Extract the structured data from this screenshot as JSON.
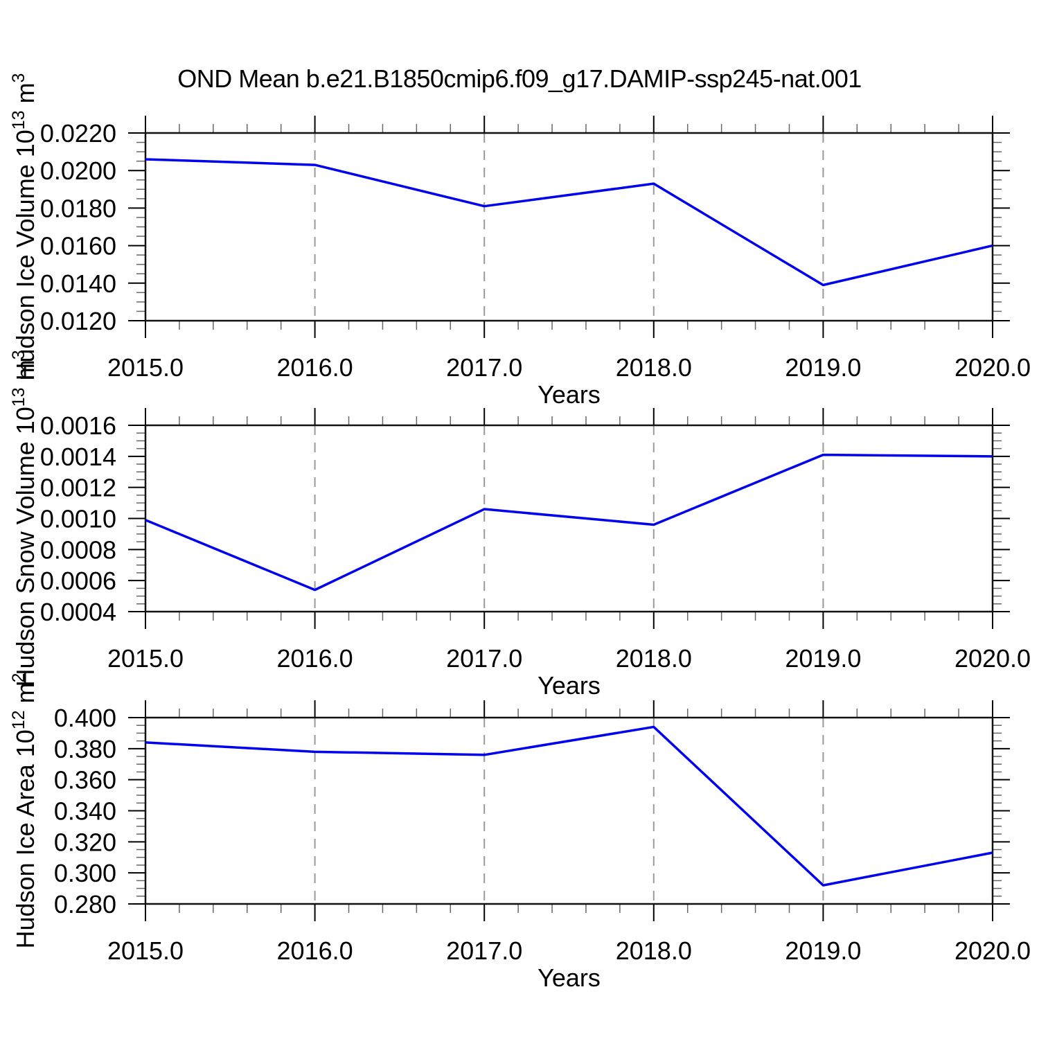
{
  "title": "OND Mean b.e21.B1850cmip6.f09_g17.DAMIP-ssp245-nat.001",
  "colors": {
    "line": "#0000ee",
    "frame": "#111111",
    "major_tick": "#000000",
    "minor_tick": "#666666",
    "grid": "#999999",
    "text": "#000000"
  },
  "chart_data": [
    {
      "type": "line",
      "name": "hudson-ice-volume",
      "ylabel_rich": [
        {
          "t": "Hudson Ice Volume 10"
        },
        {
          "sup": "13"
        },
        {
          "t": " m"
        },
        {
          "sup": "3"
        }
      ],
      "xlabel": "Years",
      "x": [
        2015.0,
        2016.0,
        2017.0,
        2018.0,
        2019.0,
        2020.0
      ],
      "y": [
        0.0206,
        0.0203,
        0.0181,
        0.0193,
        0.0139,
        0.016
      ],
      "xlim": [
        2015.0,
        2020.0
      ],
      "ylim": [
        0.012,
        0.022
      ],
      "xticks": {
        "values": [
          2015.0,
          2016.0,
          2017.0,
          2018.0,
          2019.0,
          2020.0
        ],
        "labels": [
          "2015.0",
          "2016.0",
          "2017.0",
          "2018.0",
          "2019.0",
          "2020.0"
        ]
      },
      "yticks": {
        "values": [
          0.012,
          0.014,
          0.016,
          0.018,
          0.02,
          0.022
        ],
        "labels": [
          "0.0120",
          "0.0140",
          "0.0160",
          "0.0180",
          "0.0200",
          "0.0220"
        ]
      },
      "x_minor_step": 0.2,
      "y_minor_step": 0.0005,
      "grid_x": [
        2016.0,
        2017.0,
        2018.0,
        2019.0
      ],
      "grid_style": "vertical-dashed",
      "legend": "none"
    },
    {
      "type": "line",
      "name": "hudson-snow-volume",
      "ylabel_rich": [
        {
          "t": "Hudson Snow Volume 10"
        },
        {
          "sup": "13"
        },
        {
          "t": " m"
        },
        {
          "sup": "3"
        }
      ],
      "xlabel": "Years",
      "x": [
        2015.0,
        2016.0,
        2017.0,
        2018.0,
        2019.0,
        2020.0
      ],
      "y": [
        0.00099,
        0.00054,
        0.00106,
        0.00096,
        0.00141,
        0.0014
      ],
      "xlim": [
        2015.0,
        2020.0
      ],
      "ylim": [
        0.0004,
        0.0016
      ],
      "xticks": {
        "values": [
          2015.0,
          2016.0,
          2017.0,
          2018.0,
          2019.0,
          2020.0
        ],
        "labels": [
          "2015.0",
          "2016.0",
          "2017.0",
          "2018.0",
          "2019.0",
          "2020.0"
        ]
      },
      "yticks": {
        "values": [
          0.0004,
          0.0006,
          0.0008,
          0.001,
          0.0012,
          0.0014,
          0.0016
        ],
        "labels": [
          "0.0004",
          "0.0006",
          "0.0008",
          "0.0010",
          "0.0012",
          "0.0014",
          "0.0016"
        ]
      },
      "x_minor_step": 0.2,
      "y_minor_step": 5e-05,
      "grid_x": [
        2016.0,
        2017.0,
        2018.0,
        2019.0
      ],
      "grid_style": "vertical-dashed",
      "legend": "none"
    },
    {
      "type": "line",
      "name": "hudson-ice-area",
      "ylabel_rich": [
        {
          "t": "Hudson Ice Area 10"
        },
        {
          "sup": "12"
        },
        {
          "t": " m"
        },
        {
          "sup": "2"
        }
      ],
      "xlabel": "Years",
      "x": [
        2015.0,
        2016.0,
        2017.0,
        2018.0,
        2019.0,
        2020.0
      ],
      "y": [
        0.384,
        0.378,
        0.376,
        0.394,
        0.292,
        0.313
      ],
      "xlim": [
        2015.0,
        2020.0
      ],
      "ylim": [
        0.28,
        0.4
      ],
      "xticks": {
        "values": [
          2015.0,
          2016.0,
          2017.0,
          2018.0,
          2019.0,
          2020.0
        ],
        "labels": [
          "2015.0",
          "2016.0",
          "2017.0",
          "2018.0",
          "2019.0",
          "2020.0"
        ]
      },
      "yticks": {
        "values": [
          0.28,
          0.3,
          0.32,
          0.34,
          0.36,
          0.38,
          0.4
        ],
        "labels": [
          "0.280",
          "0.300",
          "0.320",
          "0.340",
          "0.360",
          "0.380",
          "0.400"
        ]
      },
      "x_minor_step": 0.2,
      "y_minor_step": 0.005,
      "grid_x": [
        2016.0,
        2017.0,
        2018.0,
        2019.0
      ],
      "grid_style": "vertical-dashed",
      "legend": "none"
    }
  ]
}
